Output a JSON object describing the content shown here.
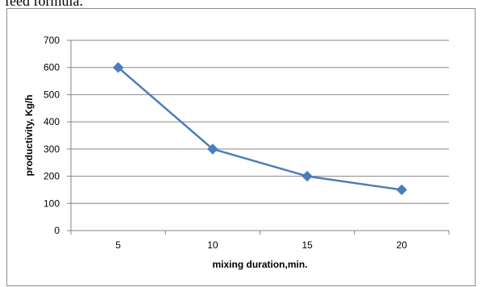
{
  "page": {
    "top_text": "feed formula."
  },
  "chart_data": {
    "type": "line",
    "title": "",
    "xlabel": "mixing duration,min.",
    "ylabel": "productivity, Kg/h",
    "categories": [
      "5",
      "10",
      "15",
      "20"
    ],
    "series": [
      {
        "values": [
          600,
          300,
          200,
          150
        ]
      }
    ],
    "ylim": [
      0,
      700
    ],
    "yticks": [
      0,
      100,
      200,
      300,
      400,
      500,
      600,
      700
    ],
    "grid": "horizontal",
    "legend": "none",
    "colors": {
      "line": "#4a7ebb",
      "grid": "#868686",
      "axis": "#868686"
    }
  }
}
